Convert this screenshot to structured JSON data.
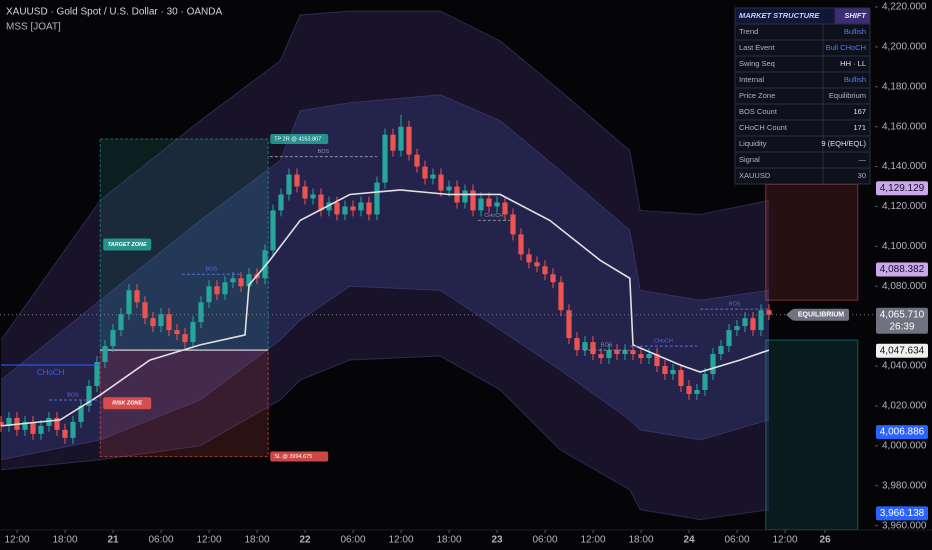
{
  "chart_data": {
    "type": "candlestick",
    "title": "XAUUSD · Gold Spot / U.S. Dollar · 30 · OANDA",
    "indicator": "MSS [JOAT]",
    "up_color": "#26a69a",
    "down_color": "#ef5350",
    "grid": false,
    "xlim": [
      -0.125,
      109.25
    ],
    "ylim": [
      3957.8,
      4223.5
    ],
    "xticks": [
      {
        "value": 2,
        "label": "12:00"
      },
      {
        "value": 8,
        "label": "18:00"
      },
      {
        "value": 14,
        "label": "21"
      },
      {
        "value": 20,
        "label": "06:00"
      },
      {
        "value": 26,
        "label": "12:00"
      },
      {
        "value": 32,
        "label": "18:00"
      },
      {
        "value": 38,
        "label": "22"
      },
      {
        "value": 44,
        "label": "06:00"
      },
      {
        "value": 50,
        "label": "12:00"
      },
      {
        "value": 56,
        "label": "18:00"
      },
      {
        "value": 62,
        "label": "23"
      },
      {
        "value": 68,
        "label": "06:00"
      },
      {
        "value": 74,
        "label": "12:00"
      },
      {
        "value": 80,
        "label": "18:00"
      },
      {
        "value": 86,
        "label": "24"
      },
      {
        "value": 92,
        "label": "06:00"
      },
      {
        "value": 98,
        "label": "12:00"
      },
      {
        "value": 103,
        "label": "26"
      }
    ],
    "yticks": [
      {
        "value": 4220,
        "label": "4,220.000"
      },
      {
        "value": 4200,
        "label": "4,200.000"
      },
      {
        "value": 4180,
        "label": "4,180.000"
      },
      {
        "value": 4160,
        "label": "4,160.000"
      },
      {
        "value": 4140,
        "label": "4,140.000"
      },
      {
        "value": 4120,
        "label": "4,120.000"
      },
      {
        "value": 4100,
        "label": "4,100.000"
      },
      {
        "value": 4080,
        "label": "4,080.000"
      },
      {
        "value": 4040,
        "label": "4,040.000"
      },
      {
        "value": 4020,
        "label": "4,020.000"
      },
      {
        "value": 4000,
        "label": "4,000.000"
      },
      {
        "value": 3980,
        "label": "3,980.000"
      },
      {
        "value": 3960,
        "label": "3,960.000"
      }
    ],
    "open": [
      4012,
      4010,
      4014,
      4008,
      4012,
      4006,
      4010,
      4014,
      4008,
      4004,
      4012,
      4020,
      4030,
      4042,
      4050,
      4058,
      4066,
      4078,
      4072,
      4064,
      4060,
      4066,
      4058,
      4056,
      4052,
      4062,
      4072,
      4080,
      4076,
      4082,
      4084,
      4080,
      4086,
      4084,
      4098,
      4118,
      4126,
      4136,
      4130,
      4124,
      4126,
      4118,
      4122,
      4116,
      4120,
      4118,
      4122,
      4116,
      4132,
      4156,
      4148,
      4160,
      4146,
      4140,
      4134,
      4136,
      4128,
      4130,
      4122,
      4128,
      4118,
      4124,
      4120,
      4122,
      4116,
      4106,
      4096,
      4092,
      4090,
      4086,
      4082,
      4068,
      4054,
      4048,
      4052,
      4046,
      4044,
      4048,
      4046,
      4048,
      4046,
      4044,
      4046,
      4040,
      4036,
      4038,
      4030,
      4026,
      4028,
      4036,
      4046,
      4050,
      4058,
      4060,
      4064,
      4058,
      4068
    ],
    "high": [
      4015,
      4017,
      4017,
      4015,
      4015,
      4013,
      4017,
      4017,
      4011,
      4015,
      4023,
      4033,
      4045,
      4053,
      4061,
      4069,
      4081,
      4081,
      4075,
      4067,
      4069,
      4069,
      4061,
      4059,
      4065,
      4075,
      4083,
      4083,
      4085,
      4087,
      4087,
      4089,
      4089,
      4101,
      4121,
      4129,
      4139,
      4139,
      4133,
      4129,
      4129,
      4125,
      4125,
      4123,
      4123,
      4125,
      4125,
      4135,
      4159,
      4159,
      4166,
      4163,
      4149,
      4143,
      4139,
      4139,
      4133,
      4133,
      4131,
      4131,
      4127,
      4127,
      4125,
      4125,
      4119,
      4109,
      4099,
      4095,
      4093,
      4089,
      4085,
      4071,
      4057,
      4055,
      4055,
      4049,
      4051,
      4051,
      4051,
      4051,
      4049,
      4049,
      4049,
      4043,
      4041,
      4041,
      4033,
      4031,
      4039,
      4049,
      4053,
      4061,
      4063,
      4067,
      4067,
      4071,
      4071
    ],
    "low": [
      4007,
      4007,
      4005,
      4005,
      4003,
      4003,
      4007,
      4005,
      4001,
      4001,
      4009,
      4017,
      4027,
      4039,
      4047,
      4055,
      4063,
      4069,
      4061,
      4057,
      4057,
      4055,
      4053,
      4049,
      4049,
      4059,
      4069,
      4073,
      4073,
      4079,
      4077,
      4077,
      4081,
      4081,
      4095,
      4115,
      4123,
      4127,
      4121,
      4121,
      4115,
      4115,
      4113,
      4113,
      4115,
      4115,
      4113,
      4113,
      4129,
      4145,
      4145,
      4143,
      4137,
      4131,
      4131,
      4125,
      4125,
      4119,
      4119,
      4115,
      4115,
      4117,
      4117,
      4113,
      4103,
      4093,
      4089,
      4087,
      4083,
      4079,
      4065,
      4051,
      4045,
      4045,
      4043,
      4041,
      4041,
      4043,
      4043,
      4043,
      4041,
      4041,
      4037,
      4033,
      4033,
      4027,
      4023,
      4023,
      4025,
      4033,
      4043,
      4047,
      4055,
      4057,
      4055,
      4055,
      4063
    ],
    "close": [
      4010,
      4014,
      4008,
      4012,
      4006,
      4010,
      4014,
      4008,
      4004,
      4012,
      4020,
      4030,
      4042,
      4050,
      4058,
      4066,
      4078,
      4072,
      4064,
      4060,
      4066,
      4058,
      4056,
      4052,
      4062,
      4072,
      4080,
      4076,
      4082,
      4084,
      4080,
      4086,
      4084,
      4098,
      4118,
      4126,
      4136,
      4130,
      4124,
      4126,
      4118,
      4122,
      4116,
      4120,
      4118,
      4122,
      4116,
      4132,
      4156,
      4148,
      4160,
      4146,
      4140,
      4134,
      4136,
      4128,
      4130,
      4122,
      4128,
      4118,
      4124,
      4120,
      4122,
      4116,
      4106,
      4096,
      4092,
      4090,
      4086,
      4082,
      4068,
      4054,
      4048,
      4052,
      4046,
      4044,
      4048,
      4046,
      4048,
      4046,
      4044,
      4046,
      4040,
      4036,
      4038,
      4030,
      4026,
      4028,
      4036,
      4046,
      4050,
      4058,
      4060,
      4064,
      4058,
      4068,
      4065.71
    ],
    "ma": {
      "color": "#e0e0e0",
      "x": [
        0,
        7.4,
        12.4,
        18.6,
        24.9,
        30.5,
        31,
        33.6,
        37.4,
        43.6,
        49.9,
        56,
        62.4,
        68.6,
        74.9,
        78.6,
        79,
        84.9,
        87.4,
        92.4,
        96
      ],
      "values": [
        4010,
        4013,
        4025.5,
        4043,
        4050.6,
        4055.6,
        4080.6,
        4093,
        4113,
        4126,
        4128.3,
        4126,
        4126,
        4113,
        4093,
        4084,
        4050.6,
        4040.5,
        4037,
        4043,
        4048
      ]
    },
    "bands": {
      "x": [
        0,
        12.4,
        24.9,
        34.9,
        37.4,
        43.6,
        54.9,
        62.4,
        69.9,
        78.6,
        79.9,
        87.4,
        96
      ],
      "outer_upper": [
        4053,
        4123,
        4163,
        4193,
        4216,
        4218,
        4218,
        4203,
        4178,
        4148,
        4118,
        4116,
        4123
      ],
      "inner_upper": [
        4033,
        4073,
        4113,
        4143,
        4168,
        4172,
        4176,
        4163,
        4138,
        4108,
        4078,
        4073,
        4078
      ],
      "inner_lower": [
        3993,
        4003,
        4023,
        4053,
        4063,
        4080,
        4078,
        4058,
        4038,
        4013,
        4008,
        4003,
        4013
      ],
      "outer_lower": [
        3988,
        3993,
        4000,
        4023,
        4033,
        4043,
        4045,
        4028,
        3998,
        3978,
        3968,
        3963,
        3968
      ],
      "outer_color": "#2a1f45",
      "inner_color": "#2f3370"
    },
    "zones": [
      {
        "name": "TARGET ZONE",
        "label": "TP 2R @ 4153.807",
        "x": [
          12.4,
          33.4
        ],
        "top": 4153.807,
        "bottom": 4048,
        "color": "#26a69a"
      },
      {
        "name": "RISK ZONE",
        "label": "SL @ 3994.675",
        "x": [
          12.4,
          33.4
        ],
        "top": 4048,
        "bottom": 3994.675,
        "color": "#ef5350"
      }
    ],
    "right_zones": [
      {
        "x": [
          95.6,
          107.1
        ],
        "top": 4131,
        "bottom": 4073,
        "color": "#ef5350"
      },
      {
        "x": [
          95.6,
          107.1
        ],
        "top": 4053,
        "bottom": 3958,
        "color": "#26a69a"
      }
    ],
    "levels": [
      {
        "label": "CHoCH",
        "price": 4040.5,
        "x": [
          0,
          12.4
        ],
        "color": "#2962ff"
      },
      {
        "label": "BOS",
        "price": 4023,
        "x": [
          6,
          12
        ],
        "color": "#5b6bd8"
      },
      {
        "label": "BOS",
        "price": 4086,
        "x": [
          22.6,
          30
        ],
        "color": "#5b6bd8"
      },
      {
        "label": "BOS",
        "price": 4145,
        "x": [
          33.6,
          47
        ],
        "color": "#8a8fa0"
      },
      {
        "label": "CHoCH",
        "price": 4113,
        "x": [
          59.6,
          63.6
        ],
        "color": "#8a8fa0"
      },
      {
        "label": "BOS",
        "price": 4048,
        "x": [
          72.8,
          78.6
        ],
        "color": "#8a8fa0"
      },
      {
        "label": "CHoCH",
        "price": 4050,
        "x": [
          78.6,
          87
        ],
        "color": "#5b6bd8"
      },
      {
        "label": "BOS",
        "price": 4068.5,
        "x": [
          87.4,
          96
        ],
        "color": "#5b6bd8"
      }
    ],
    "equilibrium_label": "EQUILIBRIUM",
    "price_tags": [
      {
        "value": 4129.129,
        "label": "4,129.129",
        "color": "#c9a7e8",
        "text_color": "#1a1030"
      },
      {
        "value": 4088.382,
        "label": "4,088.382",
        "color": "#c9a7e8",
        "text_color": "#1a1030"
      },
      {
        "value": 4065.71,
        "label": "4,065.710",
        "countdown": "26:39",
        "color": "#6f7280",
        "text_color": "#ffffff"
      },
      {
        "value": 4047.634,
        "label": "4,047.634",
        "color": "#f0f0f0",
        "text_color": "#111111"
      },
      {
        "value": 4006.886,
        "label": "4,006.886",
        "color": "#2962ff",
        "text_color": "#ffffff"
      },
      {
        "value": 3966.138,
        "label": "3,966.138",
        "color": "#2962ff",
        "text_color": "#ffffff"
      }
    ]
  },
  "table": {
    "title": "MARKET STRUCTURE",
    "badge": "SHIFT",
    "rows": [
      {
        "label": "Trend",
        "value": "Bullish",
        "color": "#4f7cff"
      },
      {
        "label": "Last Event",
        "value": "Bull CHoCH",
        "color": "#4f7cff"
      },
      {
        "label": "Swing Seq",
        "value": "HH · LL",
        "color": "#e0e3eb"
      },
      {
        "label": "Internal",
        "value": "Bullish",
        "color": "#4f7cff"
      },
      {
        "label": "Price Zone",
        "value": "Equilibrium",
        "color": "#b2b5be"
      },
      {
        "label": "BOS Count",
        "value": "167",
        "color": "#e0e3eb"
      },
      {
        "label": "CHoCH Count",
        "value": "171",
        "color": "#e0e3eb"
      },
      {
        "label": "Liquidity",
        "value": "9 (EQH/EQL)",
        "color": "#e0e3eb"
      },
      {
        "label": "Signal",
        "value": "—",
        "color": "#b2b5be"
      },
      {
        "label": "XAUUSD",
        "value": "30",
        "color": "#b2b5be"
      }
    ]
  }
}
